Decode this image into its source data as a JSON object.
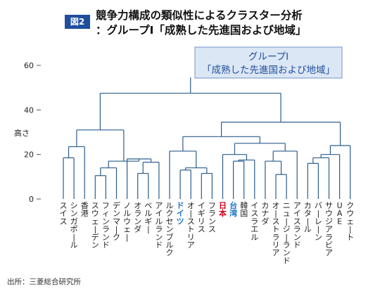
{
  "figure": {
    "badge": "図2",
    "title_line1": "競争力構成の類似性によるクラスター分析",
    "title_line2": "：グループI「成熟した先進国および地域」",
    "box_line1": "グループI",
    "box_line2": "「成熟した先進国および地域」",
    "source": "出所：三菱総合研究所"
  },
  "colors": {
    "link": "#2a5e8c",
    "axis": "#555555",
    "japan": "#d0021b",
    "highlight_blue": "#2073c7",
    "badge_bg": "#1f4e9c",
    "box_bg": "#dce7f5",
    "box_border": "#6f93c8",
    "box_text": "#1f4e9c"
  },
  "chart_data": {
    "type": "dendrogram",
    "ylabel": "高さ",
    "ylim": [
      0,
      60
    ],
    "yticks": [
      0,
      20,
      40,
      60
    ],
    "leaves": [
      {
        "label": "スイス",
        "color": "default"
      },
      {
        "label": "シンガポール",
        "color": "default"
      },
      {
        "label": "香港",
        "color": "default"
      },
      {
        "label": "スウェーデン",
        "color": "default"
      },
      {
        "label": "フィンランド",
        "color": "default"
      },
      {
        "label": "デンマーク",
        "color": "default"
      },
      {
        "label": "ノルウェー",
        "color": "default"
      },
      {
        "label": "オランダ",
        "color": "default"
      },
      {
        "label": "ベルギー",
        "color": "default"
      },
      {
        "label": "アイルランド",
        "color": "default"
      },
      {
        "label": "ルクセンブルク",
        "color": "default"
      },
      {
        "label": "ドイツ",
        "color": "blue"
      },
      {
        "label": "オーストリア",
        "color": "default"
      },
      {
        "label": "イギリス",
        "color": "default"
      },
      {
        "label": "フランス",
        "color": "default"
      },
      {
        "label": "日本",
        "color": "red"
      },
      {
        "label": "台湾",
        "color": "blue"
      },
      {
        "label": "韓国",
        "color": "default"
      },
      {
        "label": "イスラエル",
        "color": "default"
      },
      {
        "label": "カナダ",
        "color": "default"
      },
      {
        "label": "オーストラリア",
        "color": "default"
      },
      {
        "label": "ニュージーランド",
        "color": "default"
      },
      {
        "label": "アイスランド",
        "color": "default"
      },
      {
        "label": "カタール",
        "color": "default"
      },
      {
        "label": "バーレーン",
        "color": "default"
      },
      {
        "label": "サウジアラビア",
        "color": "default"
      },
      {
        "label": "UAE",
        "color": "default"
      },
      {
        "label": "クウェート",
        "color": "default"
      }
    ],
    "merges": [
      {
        "id": "m1",
        "a": 0,
        "b": 1,
        "h": 18.5
      },
      {
        "id": "m2",
        "a": "m1",
        "b": 2,
        "h": 23.5
      },
      {
        "id": "m3",
        "a": 3,
        "b": 4,
        "h": 10.5
      },
      {
        "id": "m4",
        "a": "m3",
        "b": 5,
        "h": 14
      },
      {
        "id": "m5",
        "a": 7,
        "b": 8,
        "h": 11.5
      },
      {
        "id": "m6",
        "a": "m5",
        "b": 9,
        "h": 16.5
      },
      {
        "id": "m7",
        "a": 6,
        "b": "m6",
        "h": 18
      },
      {
        "id": "m8",
        "a": "m4",
        "b": "m7",
        "h": 17
      },
      {
        "id": "m9",
        "a": "m2",
        "b": "m8",
        "h": 31
      },
      {
        "id": "m10",
        "a": 11,
        "b": 12,
        "h": 13
      },
      {
        "id": "m11",
        "a": 13,
        "b": 14,
        "h": 11.5
      },
      {
        "id": "m12",
        "a": "m10",
        "b": "m11",
        "h": 14
      },
      {
        "id": "m13",
        "a": 10,
        "b": "m12",
        "h": 21.5
      },
      {
        "id": "m14",
        "a": 16,
        "b": 17,
        "h": 17
      },
      {
        "id": "m15",
        "a": 18,
        "b": "m14",
        "h": 17.5
      },
      {
        "id": "m16",
        "a": 15,
        "b": "m15",
        "h": 20
      },
      {
        "id": "m17",
        "a": 20,
        "b": 21,
        "h": 11
      },
      {
        "id": "m18",
        "a": 19,
        "b": "m17",
        "h": 17
      },
      {
        "id": "m19",
        "a": "m18",
        "b": 22,
        "h": 21.5
      },
      {
        "id": "m20",
        "a": "m16",
        "b": "m19",
        "h": 25
      },
      {
        "id": "m21",
        "a": "m13",
        "b": "m20",
        "h": 28
      },
      {
        "id": "m22",
        "a": 23,
        "b": 24,
        "h": 16
      },
      {
        "id": "m23",
        "a": "m22",
        "b": 25,
        "h": 18.5
      },
      {
        "id": "m24",
        "a": "m23",
        "b": 26,
        "h": 20
      },
      {
        "id": "m25",
        "a": "m24",
        "b": 27,
        "h": 24
      },
      {
        "id": "m26",
        "a": "m21",
        "b": "m25",
        "h": 34.5
      },
      {
        "id": "m27",
        "a": "m9",
        "b": "m26",
        "h": 47.5
      }
    ]
  }
}
